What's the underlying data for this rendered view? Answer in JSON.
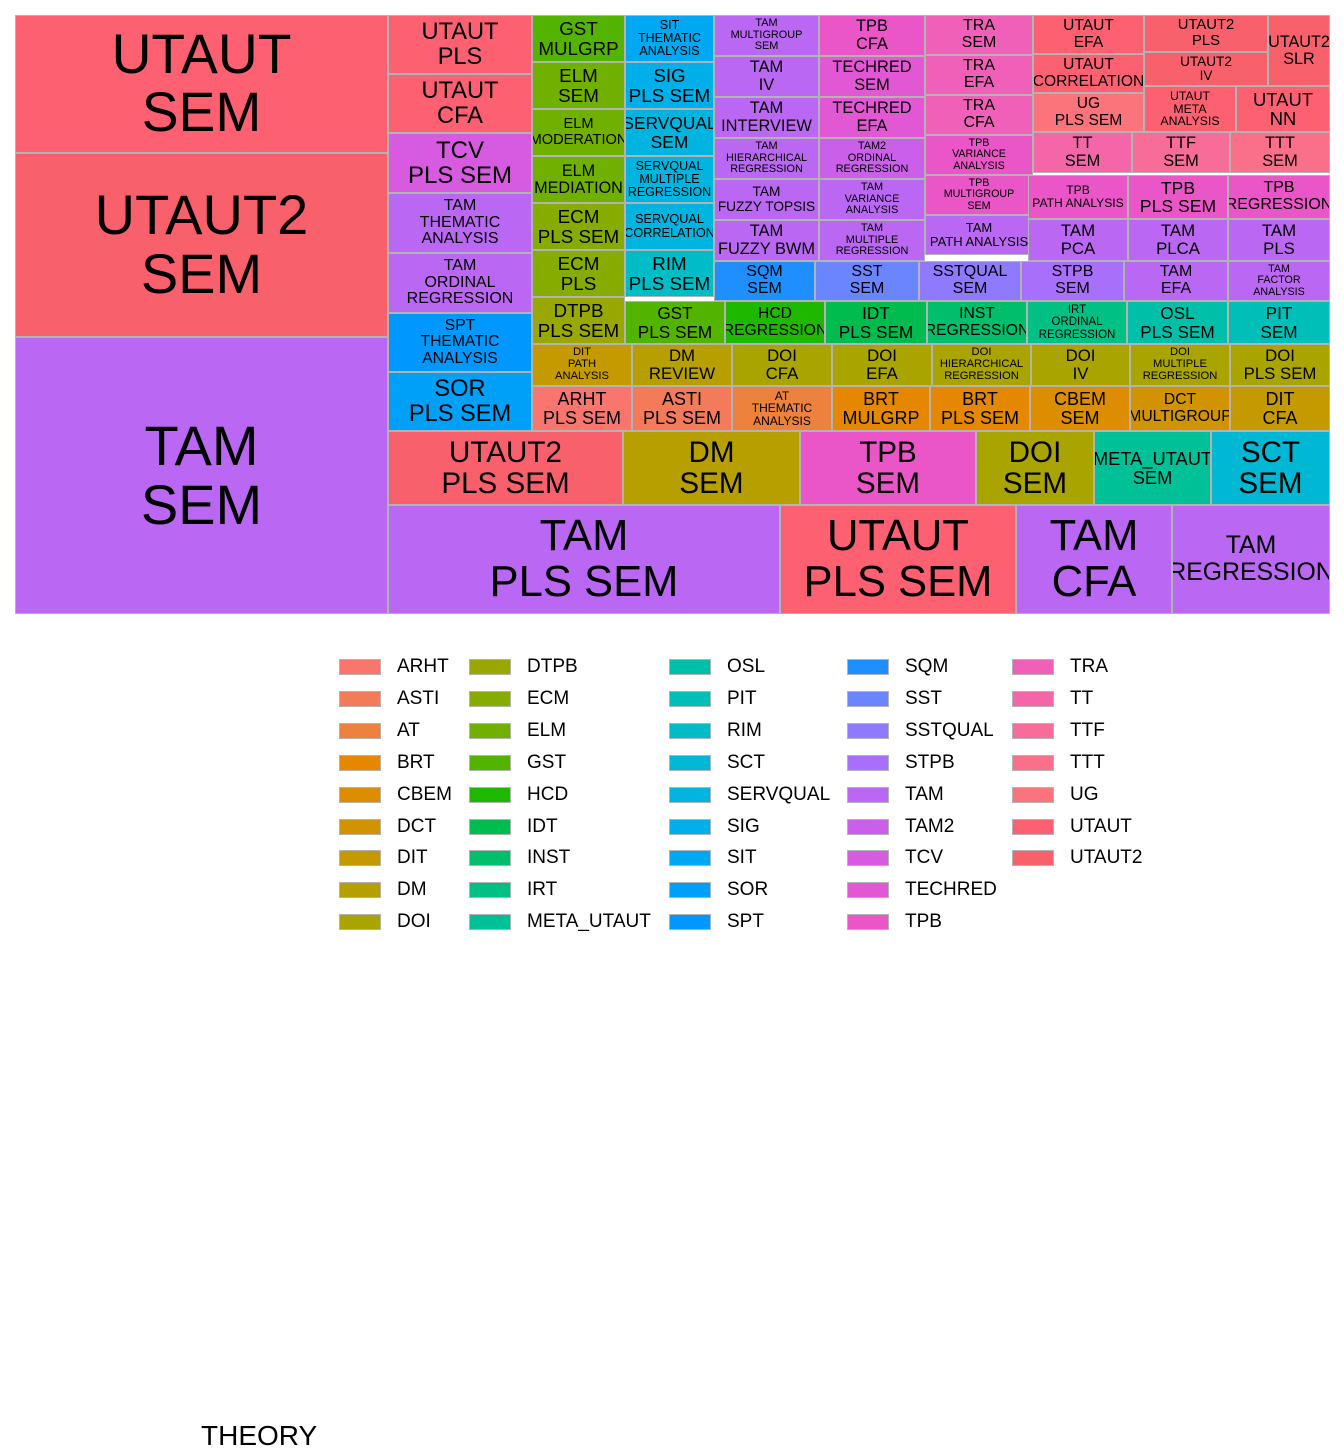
{
  "theory_colors": {
    "ARHT": "#F8766D",
    "ASTI": "#F37B59",
    "AT": "#ED813E",
    "BRT": "#E58700",
    "CBEM": "#DC8D00",
    "DCT": "#D19300",
    "DIT": "#C59900",
    "DM": "#B89F00",
    "DOI": "#A9A400",
    "DTPB": "#99A800",
    "ECM": "#86AC00",
    "ELM": "#70B000",
    "GST": "#53B400",
    "HCD": "#1EB800",
    "IDT": "#00BB4E",
    "INST": "#00BE6C",
    "IRT": "#00C083",
    "META_UTAUT": "#00C097",
    "OSL": "#00BFA8",
    "PIT": "#00BEB8",
    "RIM": "#00BCC6",
    "SCT": "#00B8D3",
    "SERVQUAL": "#00B4DF",
    "SIG": "#00AEE9",
    "SIT": "#00A7F2",
    "SOR": "#00A0F9",
    "SPT": "#0098FF",
    "SQM": "#1F8FFF",
    "SST": "#6B85FF",
    "SSTQUAL": "#8F7AFE",
    "STPB": "#A86FFA",
    "TAM": "#BA68F3",
    "TAM2": "#CA60EA",
    "TCV": "#D75BE0",
    "TECHRED": "#E258D4",
    "TPB": "#EA55C7",
    "TRA": "#F160B8",
    "TT": "#F566A9",
    "TTF": "#F86C99",
    "TTT": "#FA708A",
    "UG": "#FB737B",
    "UTAUT": "#FC6071",
    "UTAUT2": "#F8606C"
  },
  "chart_data": {
    "type": "treemap",
    "value_field": "count",
    "fill_field": "THEORY",
    "tiles": [
      {
        "label": "UTAUT\nSEM",
        "theory": "UTAUT",
        "value": 131
      },
      {
        "label": "UTAUT2\nSEM",
        "theory": "UTAUT2",
        "value": 175
      },
      {
        "label": "TAM\nSEM",
        "theory": "TAM",
        "value": 263
      },
      {
        "label": "UTAUT\nPLS",
        "theory": "UTAUT",
        "value": 14
      },
      {
        "label": "UTAUT\nCFA",
        "theory": "UTAUT",
        "value": 14
      },
      {
        "label": "TCV\nPLS SEM",
        "theory": "TCV",
        "value": 14
      },
      {
        "label": "TAM\nTHEMATIC\nANALYSIS",
        "theory": "TAM",
        "value": 14
      },
      {
        "label": "TAM\nORDINAL\nREGRESSION",
        "theory": "TAM",
        "value": 14
      },
      {
        "label": "SPT\nTHEMATIC\nANALYSIS",
        "theory": "SPT",
        "value": 14
      },
      {
        "label": "SOR\nPLS SEM",
        "theory": "SOR",
        "value": 14
      },
      {
        "label": "GST\nMULGRP",
        "theory": "GST",
        "value": 4
      },
      {
        "label": "ELM\nSEM",
        "theory": "ELM",
        "value": 4
      },
      {
        "label": "ELM\nMODERATION",
        "theory": "ELM",
        "value": 4
      },
      {
        "label": "ELM\nMEDIATION",
        "theory": "ELM",
        "value": 4
      },
      {
        "label": "ECM\nPLS SEM",
        "theory": "ECM",
        "value": 4
      },
      {
        "label": "ECM\nPLS",
        "theory": "ECM",
        "value": 4
      },
      {
        "label": "DTPB\nPLS SEM",
        "theory": "DTPB",
        "value": 4
      },
      {
        "label": "SIT\nTHEMATIC\nANALYSIS",
        "theory": "SIT",
        "value": 4
      },
      {
        "label": "SIG\nPLS SEM",
        "theory": "SIG",
        "value": 4
      },
      {
        "label": "SERVQUAL\nSEM",
        "theory": "SERVQUAL",
        "value": 4
      },
      {
        "label": "SERVQUAL\nMULTIPLE\nREGRESSION",
        "theory": "SERVQUAL",
        "value": 4
      },
      {
        "label": "SERVQUAL\nCORRELATION",
        "theory": "SERVQUAL",
        "value": 4
      },
      {
        "label": "RIM\nPLS SEM",
        "theory": "RIM",
        "value": 4
      },
      {
        "label": "TAM\nMULTIGROUP\nSEM",
        "theory": "TAM",
        "value": 4
      },
      {
        "label": "TAM\nIV",
        "theory": "TAM",
        "value": 4
      },
      {
        "label": "TAM\nINTERVIEW",
        "theory": "TAM",
        "value": 4
      },
      {
        "label": "TAM\nHIERARCHICAL\nREGRESSION",
        "theory": "TAM",
        "value": 4
      },
      {
        "label": "TAM\nFUZZY TOPSIS",
        "theory": "TAM",
        "value": 4
      },
      {
        "label": "TAM\nFUZZY BWM",
        "theory": "TAM",
        "value": 4
      },
      {
        "label": "TPB\nCFA",
        "theory": "TPB",
        "value": 4
      },
      {
        "label": "TECHRED\nSEM",
        "theory": "TECHRED",
        "value": 4
      },
      {
        "label": "TECHRED\nEFA",
        "theory": "TECHRED",
        "value": 4
      },
      {
        "label": "TAM2\nORDINAL\nREGRESSION",
        "theory": "TAM2",
        "value": 4
      },
      {
        "label": "TAM\nVARIANCE\nANALYSIS",
        "theory": "TAM",
        "value": 4
      },
      {
        "label": "TAM\nMULTIPLE\nREGRESSION",
        "theory": "TAM",
        "value": 4
      },
      {
        "label": "TRA\nSEM",
        "theory": "TRA",
        "value": 4
      },
      {
        "label": "TRA\nEFA",
        "theory": "TRA",
        "value": 4
      },
      {
        "label": "TRA\nCFA",
        "theory": "TRA",
        "value": 4
      },
      {
        "label": "TPB\nVARIANCE\nANALYSIS",
        "theory": "TPB",
        "value": 4
      },
      {
        "label": "TPB\nMULTIGROUP\nSEM",
        "theory": "TPB",
        "value": 4
      },
      {
        "label": "TAM\nPATH ANALYSIS",
        "theory": "TAM",
        "value": 4
      },
      {
        "label": "UTAUT\nEFA",
        "theory": "UTAUT",
        "value": 4
      },
      {
        "label": "UTAUT\nCORRELATION",
        "theory": "UTAUT",
        "value": 4
      },
      {
        "label": "UG\nPLS SEM",
        "theory": "UG",
        "value": 4
      },
      {
        "label": "UTAUT2\nPLS",
        "theory": "UTAUT2",
        "value": 4
      },
      {
        "label": "UTAUT2\nIV",
        "theory": "UTAUT2",
        "value": 4
      },
      {
        "label": "UTAUT2\nSLR",
        "theory": "UTAUT2",
        "value": 4
      },
      {
        "label": "UTAUT\nMETA\nANALYSIS",
        "theory": "UTAUT",
        "value": 4
      },
      {
        "label": "UTAUT\nNN",
        "theory": "UTAUT",
        "value": 4
      },
      {
        "label": "TT\nSEM",
        "theory": "TT",
        "value": 4
      },
      {
        "label": "TTF\nSEM",
        "theory": "TTF",
        "value": 4
      },
      {
        "label": "TTT\nSEM",
        "theory": "TTT",
        "value": 4
      },
      {
        "label": "TPB\nPATH ANALYSIS",
        "theory": "TPB",
        "value": 4
      },
      {
        "label": "TPB\nPLS SEM",
        "theory": "TPB",
        "value": 4
      },
      {
        "label": "TPB\nREGRESSION",
        "theory": "TPB",
        "value": 4
      },
      {
        "label": "TAM\nPCA",
        "theory": "TAM",
        "value": 4
      },
      {
        "label": "TAM\nPLCA",
        "theory": "TAM",
        "value": 4
      },
      {
        "label": "TAM\nPLS",
        "theory": "TAM",
        "value": 4
      },
      {
        "label": "SQM\nSEM",
        "theory": "SQM",
        "value": 4
      },
      {
        "label": "SST\nSEM",
        "theory": "SST",
        "value": 4
      },
      {
        "label": "SSTQUAL\nSEM",
        "theory": "SSTQUAL",
        "value": 4
      },
      {
        "label": "STPB\nSEM",
        "theory": "STPB",
        "value": 4
      },
      {
        "label": "TAM\nEFA",
        "theory": "TAM",
        "value": 4
      },
      {
        "label": "TAM\nFACTOR\nANALYSIS",
        "theory": "TAM",
        "value": 4
      },
      {
        "label": "GST\nPLS SEM",
        "theory": "GST",
        "value": 4
      },
      {
        "label": "HCD\nREGRESSION",
        "theory": "HCD",
        "value": 4
      },
      {
        "label": "IDT\nPLS SEM",
        "theory": "IDT",
        "value": 4
      },
      {
        "label": "INST\nREGRESSION",
        "theory": "INST",
        "value": 4
      },
      {
        "label": "IRT\nORDINAL\nREGRESSION",
        "theory": "IRT",
        "value": 4
      },
      {
        "label": "OSL\nPLS SEM",
        "theory": "OSL",
        "value": 4
      },
      {
        "label": "PIT\nSEM",
        "theory": "PIT",
        "value": 4
      },
      {
        "label": "DIT\nPATH\nANALYSIS",
        "theory": "DIT",
        "value": 4
      },
      {
        "label": "DM\nREVIEW",
        "theory": "DM",
        "value": 4
      },
      {
        "label": "DOI\nCFA",
        "theory": "DOI",
        "value": 4
      },
      {
        "label": "DOI\nEFA",
        "theory": "DOI",
        "value": 4
      },
      {
        "label": "DOI\nHIERARCHICAL\nREGRESSION",
        "theory": "DOI",
        "value": 4
      },
      {
        "label": "DOI\nIV",
        "theory": "DOI",
        "value": 4
      },
      {
        "label": "DOI\nMULTIPLE\nREGRESSION",
        "theory": "DOI",
        "value": 4
      },
      {
        "label": "DOI\nPLS SEM",
        "theory": "DOI",
        "value": 4
      },
      {
        "label": "ARHT\nPLS SEM",
        "theory": "ARHT",
        "value": 4
      },
      {
        "label": "ASTI\nPLS SEM",
        "theory": "ASTI",
        "value": 4
      },
      {
        "label": "AT\nTHEMATIC\nANALYSIS",
        "theory": "AT",
        "value": 4
      },
      {
        "label": "BRT\nMULGRP",
        "theory": "BRT",
        "value": 4
      },
      {
        "label": "BRT\nPLS SEM",
        "theory": "BRT",
        "value": 4
      },
      {
        "label": "CBEM\nSEM",
        "theory": "CBEM",
        "value": 4
      },
      {
        "label": "DCT\nMULTIGROUP",
        "theory": "DCT",
        "value": 4
      },
      {
        "label": "DIT\nCFA",
        "theory": "DIT",
        "value": 4
      },
      {
        "label": "UTAUT2\nPLS SEM",
        "theory": "UTAUT2",
        "value": 27
      },
      {
        "label": "DM\nSEM",
        "theory": "DM",
        "value": 20
      },
      {
        "label": "TPB\nSEM",
        "theory": "TPB",
        "value": 20
      },
      {
        "label": "DOI\nSEM",
        "theory": "DOI",
        "value": 14
      },
      {
        "label": "META_UTAUT\nSEM",
        "theory": "META_UTAUT",
        "value": 14
      },
      {
        "label": "SCT\nSEM",
        "theory": "SCT",
        "value": 14
      },
      {
        "label": "TAM\nPLS SEM",
        "theory": "TAM",
        "value": 54
      },
      {
        "label": "UTAUT\nPLS SEM",
        "theory": "UTAUT",
        "value": 32
      },
      {
        "label": "TAM\nCFA",
        "theory": "TAM",
        "value": 20
      },
      {
        "label": "TAM\nREGRESSION",
        "theory": "TAM",
        "value": 20
      }
    ],
    "legend": {
      "title": "THEORY",
      "entries": [
        "ARHT",
        "ASTI",
        "AT",
        "BRT",
        "CBEM",
        "DCT",
        "DIT",
        "DM",
        "DOI",
        "DTPB",
        "ECM",
        "ELM",
        "GST",
        "HCD",
        "IDT",
        "INST",
        "IRT",
        "META_UTAUT",
        "OSL",
        "PIT",
        "RIM",
        "SCT",
        "SERVQUAL",
        "SIG",
        "SIT",
        "SOR",
        "SPT",
        "SQM",
        "SST",
        "SSTQUAL",
        "STPB",
        "TAM",
        "TAM2",
        "TCV",
        "TECHRED",
        "TPB",
        "TRA",
        "TT",
        "TTF",
        "TTT",
        "UG",
        "UTAUT",
        "UTAUT2"
      ],
      "columns": 5,
      "rows_per_column": 9,
      "placement": "bottom"
    }
  }
}
